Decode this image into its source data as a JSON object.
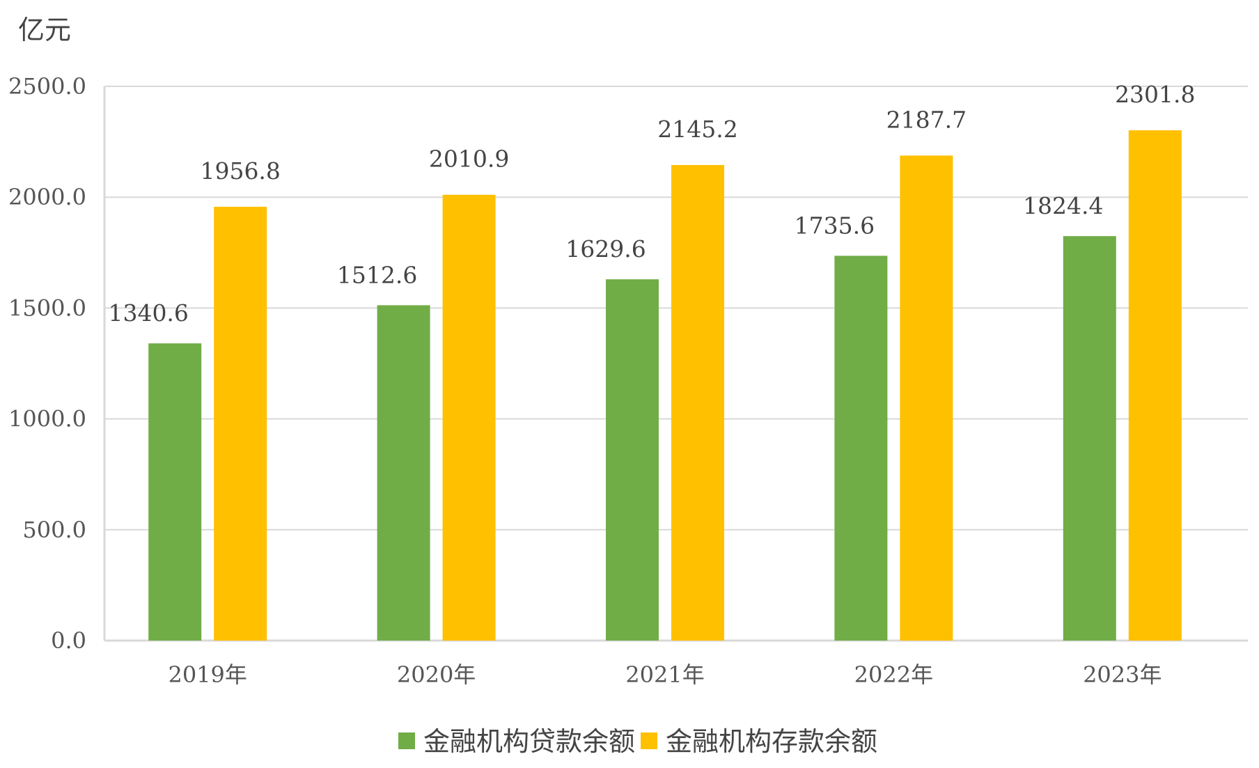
{
  "chart_data": {
    "type": "bar",
    "title": "",
    "unit_label": "亿元",
    "xlabel": "",
    "ylabel": "",
    "categories": [
      "2019年",
      "2020年",
      "2021年",
      "2022年",
      "2023年"
    ],
    "series": [
      {
        "name": "金融机构贷款余额",
        "color": "#70ad47",
        "values": [
          1340.6,
          1512.6,
          1629.6,
          1735.6,
          1824.4
        ]
      },
      {
        "name": "金融机构存款余额",
        "color": "#ffc000",
        "values": [
          1956.8,
          2010.9,
          2145.2,
          2187.7,
          2301.8
        ]
      }
    ],
    "ylim": [
      0,
      2500
    ],
    "yticks": [
      "0.0",
      "500.0",
      "1000.0",
      "1500.0",
      "2000.0",
      "2500.0"
    ],
    "grid": true,
    "legend_position": "bottom-center"
  }
}
